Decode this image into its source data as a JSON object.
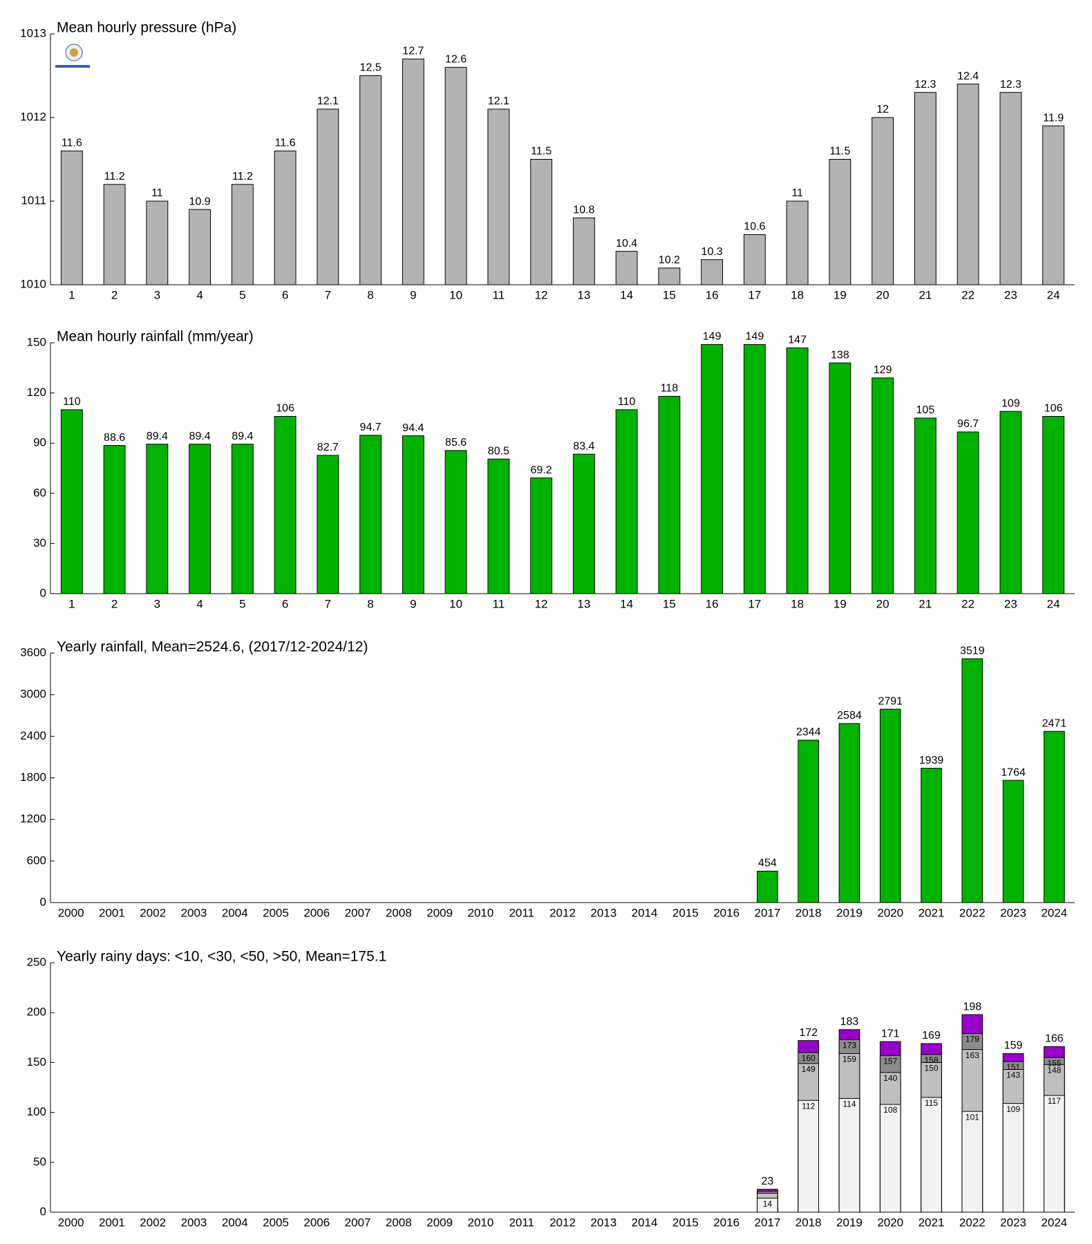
{
  "chart_data": [
    {
      "type": "bar",
      "title": "Mean hourly pressure (hPa)",
      "categories": [
        "1",
        "2",
        "3",
        "4",
        "5",
        "6",
        "7",
        "8",
        "9",
        "10",
        "11",
        "12",
        "13",
        "14",
        "15",
        "16",
        "17",
        "18",
        "19",
        "20",
        "21",
        "22",
        "23",
        "24"
      ],
      "values": [
        1011.6,
        1011.2,
        1011,
        1010.9,
        1011.2,
        1011.6,
        1012.1,
        1012.5,
        1012.7,
        1012.6,
        1012.1,
        1011.5,
        1010.8,
        1010.4,
        1010.2,
        1010.3,
        1010.6,
        1011,
        1011.5,
        1012,
        1012.3,
        1012.4,
        1012.3,
        1011.9
      ],
      "value_labels": [
        "11.6",
        "11.2",
        "11",
        "10.9",
        "11.2",
        "11.6",
        "12.1",
        "12.5",
        "12.7",
        "12.6",
        "12.1",
        "11.5",
        "10.8",
        "10.4",
        "10.2",
        "10.3",
        "10.6",
        "11",
        "11.5",
        "12",
        "12.3",
        "12.4",
        "12.3",
        "11.9"
      ],
      "color": "#b3b3b3",
      "ylim": [
        1010,
        1013
      ],
      "yticks": [
        1010,
        1011,
        1012,
        1013
      ],
      "grid": false
    },
    {
      "type": "bar",
      "title": "Mean hourly rainfall (mm/year)",
      "categories": [
        "1",
        "2",
        "3",
        "4",
        "5",
        "6",
        "7",
        "8",
        "9",
        "10",
        "11",
        "12",
        "13",
        "14",
        "15",
        "16",
        "17",
        "18",
        "19",
        "20",
        "21",
        "22",
        "23",
        "24"
      ],
      "values": [
        110,
        88.6,
        89.4,
        89.4,
        89.4,
        106,
        82.7,
        94.7,
        94.4,
        85.6,
        80.5,
        69.2,
        83.4,
        110,
        118,
        149,
        149,
        147,
        138,
        129,
        105,
        96.7,
        109,
        106
      ],
      "color": "#00b300",
      "ylim": [
        0,
        150
      ],
      "yticks": [
        0,
        30,
        60,
        90,
        120,
        150
      ],
      "grid": false
    },
    {
      "type": "bar",
      "title": "Yearly rainfall, Mean=2524.6, (2017/12-2024/12)",
      "categories": [
        "2000",
        "2001",
        "2002",
        "2003",
        "2004",
        "2005",
        "2006",
        "2007",
        "2008",
        "2009",
        "2010",
        "2011",
        "2012",
        "2013",
        "2014",
        "2015",
        "2016",
        "2017",
        "2018",
        "2019",
        "2020",
        "2021",
        "2022",
        "2023",
        "2024"
      ],
      "values": [
        null,
        null,
        null,
        null,
        null,
        null,
        null,
        null,
        null,
        null,
        null,
        null,
        null,
        null,
        null,
        null,
        null,
        454,
        2344,
        2584,
        2791,
        1939,
        3519,
        1764,
        2471
      ],
      "color": "#00b300",
      "ylim": [
        0,
        3600
      ],
      "yticks": [
        0,
        600,
        1200,
        1800,
        2400,
        3000,
        3600
      ],
      "grid": false
    },
    {
      "type": "bar",
      "title": "Yearly rainy days: <10, <30, <50, >50, Mean=175.1",
      "categories": [
        "2000",
        "2001",
        "2002",
        "2003",
        "2004",
        "2005",
        "2006",
        "2007",
        "2008",
        "2009",
        "2010",
        "2011",
        "2012",
        "2013",
        "2014",
        "2015",
        "2016",
        "2017",
        "2018",
        "2019",
        "2020",
        "2021",
        "2022",
        "2023",
        "2024"
      ],
      "series": [
        {
          "color": "#f2f2f2",
          "values": [
            null,
            null,
            null,
            null,
            null,
            null,
            null,
            null,
            null,
            null,
            null,
            null,
            null,
            null,
            null,
            null,
            null,
            14,
            112,
            114,
            108,
            115,
            101,
            109,
            117
          ]
        },
        {
          "color": "#bfbfbf",
          "values": [
            null,
            null,
            null,
            null,
            null,
            null,
            null,
            null,
            null,
            null,
            null,
            null,
            null,
            null,
            null,
            null,
            null,
            19,
            149,
            159,
            140,
            150,
            163,
            143,
            148
          ],
          "value_labels": [
            null,
            null,
            null,
            null,
            null,
            null,
            null,
            null,
            null,
            null,
            null,
            null,
            null,
            null,
            null,
            null,
            null,
            null,
            "149",
            "159",
            "140",
            "150",
            "163",
            "143",
            "148"
          ]
        },
        {
          "color": "#8c8c8c",
          "values": [
            null,
            null,
            null,
            null,
            null,
            null,
            null,
            null,
            null,
            null,
            null,
            null,
            null,
            null,
            null,
            null,
            null,
            21,
            160,
            173,
            157,
            158,
            179,
            151,
            155
          ],
          "value_labels": [
            null,
            null,
            null,
            null,
            null,
            null,
            null,
            null,
            null,
            null,
            null,
            null,
            null,
            null,
            null,
            null,
            null,
            null,
            "160",
            "173",
            "157",
            "158",
            "179",
            "151",
            "155"
          ]
        },
        {
          "color": "#9900cc",
          "values": [
            null,
            null,
            null,
            null,
            null,
            null,
            null,
            null,
            null,
            null,
            null,
            null,
            null,
            null,
            null,
            null,
            null,
            23,
            172,
            183,
            171,
            169,
            198,
            159,
            166
          ]
        }
      ],
      "ylim": [
        0,
        250
      ],
      "yticks": [
        0,
        50,
        100,
        150,
        200,
        250
      ],
      "grid": false
    }
  ]
}
